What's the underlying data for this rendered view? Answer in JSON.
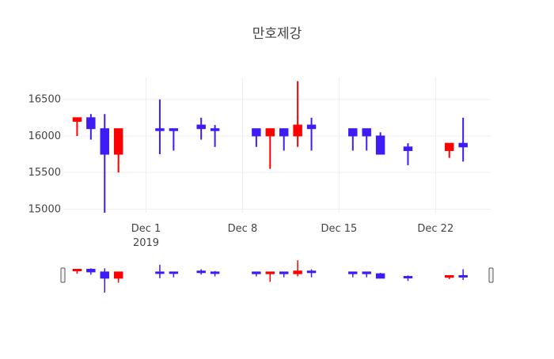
{
  "chart_data": {
    "type": "candlestick",
    "title": "만호제강",
    "xlabel": "",
    "ylabel": "",
    "ylim": [
      14950,
      16800
    ],
    "y_ticks": [
      15000,
      15500,
      16000,
      16500
    ],
    "x_ticks": [
      {
        "date": "2019-12-01",
        "label": "Dec 1",
        "sublabel": "2019"
      },
      {
        "date": "2019-12-08",
        "label": "Dec 8",
        "sublabel": ""
      },
      {
        "date": "2019-12-15",
        "label": "Dec 15",
        "sublabel": ""
      },
      {
        "date": "2019-12-22",
        "label": "Dec 22",
        "sublabel": ""
      }
    ],
    "xlim": [
      "2019-11-25",
      "2019-12-26"
    ],
    "colors": {
      "increasing": "#3d1cf5",
      "decreasing": "#ff0000"
    },
    "grid": true,
    "legend": "none",
    "range_slider": true,
    "candles": [
      {
        "date": "2019-11-26",
        "open": 16250,
        "high": 16250,
        "low": 16000,
        "close": 16200
      },
      {
        "date": "2019-11-27",
        "open": 16100,
        "high": 16300,
        "low": 15950,
        "close": 16250
      },
      {
        "date": "2019-11-28",
        "open": 15750,
        "high": 16300,
        "low": 14950,
        "close": 16100
      },
      {
        "date": "2019-11-29",
        "open": 16100,
        "high": 16100,
        "low": 15500,
        "close": 15750
      },
      {
        "date": "2019-12-02",
        "open": 16100,
        "high": 16500,
        "low": 15750,
        "close": 16100
      },
      {
        "date": "2019-12-03",
        "open": 16100,
        "high": 16100,
        "low": 15800,
        "close": 16100
      },
      {
        "date": "2019-12-05",
        "open": 16100,
        "high": 16250,
        "low": 15950,
        "close": 16150
      },
      {
        "date": "2019-12-06",
        "open": 16100,
        "high": 16150,
        "low": 15850,
        "close": 16100
      },
      {
        "date": "2019-12-09",
        "open": 16000,
        "high": 16100,
        "low": 15850,
        "close": 16100
      },
      {
        "date": "2019-12-10",
        "open": 16100,
        "high": 16100,
        "low": 15550,
        "close": 16000
      },
      {
        "date": "2019-12-11",
        "open": 16000,
        "high": 16100,
        "low": 15800,
        "close": 16100
      },
      {
        "date": "2019-12-12",
        "open": 16150,
        "high": 16750,
        "low": 15850,
        "close": 16000
      },
      {
        "date": "2019-12-13",
        "open": 16100,
        "high": 16250,
        "low": 15800,
        "close": 16150
      },
      {
        "date": "2019-12-16",
        "open": 16000,
        "high": 16100,
        "low": 15800,
        "close": 16100
      },
      {
        "date": "2019-12-17",
        "open": 16000,
        "high": 16100,
        "low": 15800,
        "close": 16100
      },
      {
        "date": "2019-12-18",
        "open": 15750,
        "high": 16050,
        "low": 15750,
        "close": 16000
      },
      {
        "date": "2019-12-20",
        "open": 15800,
        "high": 15900,
        "low": 15600,
        "close": 15850
      },
      {
        "date": "2019-12-23",
        "open": 15900,
        "high": 15900,
        "low": 15700,
        "close": 15800
      },
      {
        "date": "2019-12-24",
        "open": 15850,
        "high": 16250,
        "low": 15650,
        "close": 15900
      }
    ]
  }
}
